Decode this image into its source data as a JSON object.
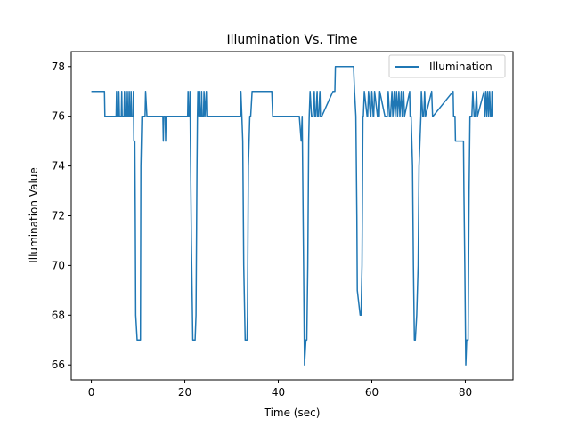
{
  "chart_data": {
    "type": "line",
    "title": "Illumination Vs. Time",
    "xlabel": "Time (sec)",
    "ylabel": "Illumination Value",
    "xlim": [
      -4.3,
      90.2
    ],
    "ylim": [
      65.4,
      78.6
    ],
    "xticks": [
      0,
      20,
      40,
      60,
      80
    ],
    "yticks": [
      66,
      68,
      70,
      72,
      74,
      76,
      78
    ],
    "grid": false,
    "legend_position": "top-right",
    "colors": {
      "series": "#1f77b4"
    },
    "series": [
      {
        "name": "Illumination",
        "x": [
          0,
          2.8,
          2.9,
          3.0,
          5.3,
          5.4,
          5.5,
          5.8,
          5.9,
          6.0,
          6.4,
          6.5,
          6.6,
          7.0,
          7.1,
          7.2,
          7.6,
          7.7,
          7.8,
          8.0,
          8.1,
          8.2,
          8.4,
          8.5,
          8.6,
          8.9,
          9.0,
          9.1,
          9.3,
          9.4,
          9.5,
          9.8,
          10.5,
          10.6,
          10.8,
          11.3,
          11.5,
          11.6,
          11.9,
          12.0,
          15.3,
          15.4,
          15.5,
          15.8,
          15.9,
          16.0,
          20.6,
          20.7,
          20.8,
          21.0,
          21.1,
          21.2,
          21.4,
          21.7,
          22.2,
          22.4,
          22.6,
          22.7,
          22.8,
          23.0,
          23.1,
          23.3,
          23.5,
          23.6,
          23.7,
          24.0,
          24.1,
          24.3,
          24.6,
          24.7,
          31.9,
          32.0,
          32.2,
          32.4,
          32.6,
          32.9,
          33.3,
          33.4,
          33.6,
          33.9,
          34.1,
          34.4,
          34.7,
          35.0,
          35.1,
          38.5,
          38.6,
          38.8,
          44.3,
          44.4,
          44.5,
          44.9,
          45.1,
          45.4,
          45.6,
          45.9,
          46.1,
          46.3,
          46.5,
          46.6,
          46.8,
          47.1,
          47.2,
          47.4,
          47.7,
          47.8,
          48.0,
          48.3,
          48.4,
          48.6,
          48.9,
          49.0,
          49.3,
          51.7,
          51.8,
          52.1,
          52.2,
          55.8,
          55.9,
          56.1,
          56.3,
          56.6,
          56.8,
          56.9,
          57.5,
          57.7,
          57.9,
          58.1,
          58.2,
          58.4,
          59.0,
          59.1,
          59.3,
          59.7,
          59.8,
          60.0,
          60.3,
          60.4,
          60.6,
          61.2,
          61.3,
          61.5,
          61.6,
          61.7,
          62.8,
          63.0,
          63.3,
          63.5,
          63.8,
          64.0,
          64.3,
          64.5,
          64.8,
          65.0,
          65.3,
          65.5,
          65.8,
          66.0,
          66.3,
          66.5,
          66.8,
          67.0,
          68.1,
          68.2,
          68.4,
          68.7,
          68.9,
          69.1,
          69.3,
          69.6,
          69.9,
          70.1,
          70.5,
          70.6,
          70.9,
          71.1,
          71.3,
          71.5,
          72.8,
          73.0,
          73.1,
          77.4,
          77.5,
          77.7,
          77.8,
          77.9,
          79.6,
          79.7,
          79.9,
          80.1,
          80.3,
          80.6,
          80.8,
          81.0,
          81.4,
          81.6,
          81.9,
          82.1,
          82.4,
          82.6,
          84.0,
          84.2,
          84.4,
          84.6,
          84.8,
          85.0,
          85.2,
          85.4,
          85.6,
          85.7,
          85.8
        ],
        "values": [
          77,
          77,
          76,
          76,
          76,
          77,
          76,
          76,
          77,
          76,
          76,
          77,
          76,
          76,
          77,
          76,
          76,
          77,
          76,
          76,
          77,
          76,
          76,
          77,
          76,
          76,
          77,
          75,
          75,
          72,
          68,
          67,
          67,
          74,
          76,
          76,
          76,
          77,
          76,
          76,
          76,
          75,
          76,
          76,
          75,
          76,
          76,
          77,
          76,
          76,
          77,
          75,
          71,
          67,
          67,
          68,
          74,
          76,
          77,
          76,
          77,
          76,
          76,
          77,
          76,
          76,
          77,
          76,
          77,
          76,
          76,
          77,
          76,
          75,
          70,
          67,
          67,
          68,
          74,
          76,
          76,
          77,
          77,
          77,
          77,
          77,
          77,
          76,
          76,
          76,
          76,
          75,
          76,
          70,
          66,
          67,
          67,
          70,
          75,
          76,
          77,
          76,
          76,
          76,
          77,
          76,
          76,
          77,
          76,
          76,
          77,
          76,
          76,
          77,
          77,
          77,
          78,
          78,
          78,
          78,
          77,
          76,
          72,
          69,
          68,
          68,
          70,
          76,
          76,
          77,
          76,
          76,
          77,
          76,
          76,
          77,
          76,
          76,
          77,
          76,
          76,
          77,
          76,
          77,
          76,
          76,
          76,
          77,
          76,
          76,
          77,
          76,
          77,
          76,
          77,
          76,
          77,
          76,
          77,
          76,
          77,
          76,
          77,
          76,
          76,
          74,
          70,
          67,
          67,
          68,
          70,
          74,
          76,
          77,
          76,
          76,
          77,
          76,
          77,
          76,
          76,
          77,
          76,
          76,
          76,
          75,
          75,
          73,
          70,
          66,
          67,
          67,
          73,
          76,
          76,
          77,
          76,
          76,
          77,
          76,
          77,
          76,
          77,
          76,
          77,
          76,
          77,
          76,
          76,
          77,
          76
        ]
      }
    ]
  }
}
